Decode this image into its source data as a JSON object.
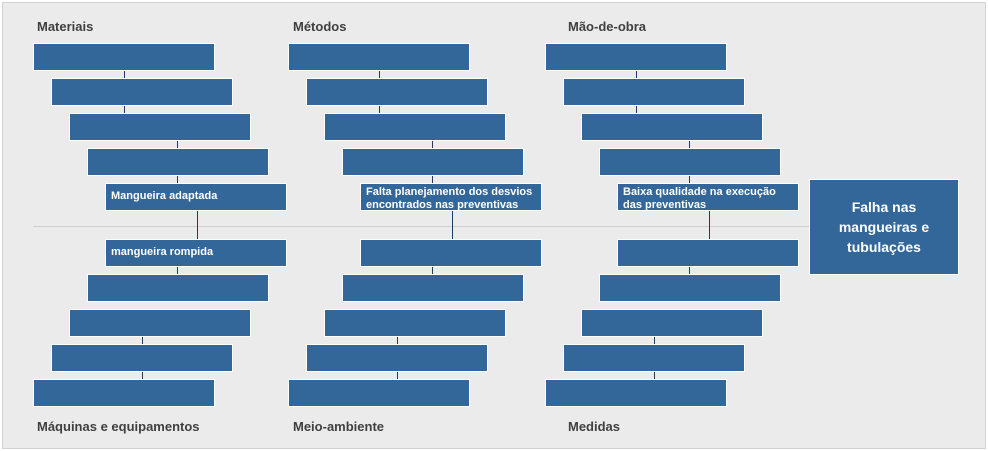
{
  "categories": {
    "materiais": "Materiais",
    "metodos": "Métodos",
    "mao_de_obra": "Mão-de-obra",
    "maquinas": "Máquinas e equipamentos",
    "meio_ambiente": "Meio-ambiente",
    "medidas": "Medidas"
  },
  "causes": {
    "materiais": [
      "",
      "",
      "",
      "",
      "Mangueira adaptada"
    ],
    "metodos": [
      "",
      "",
      "",
      "",
      "Falta planejamento dos desvios encontrados nas preventivas"
    ],
    "mao_de_obra": [
      "",
      "",
      "",
      "",
      "Baixa qualidade na execução das preventivas"
    ],
    "maquinas": [
      "mangueira rompida",
      "",
      "",
      "",
      ""
    ],
    "meio_ambiente": [
      "",
      "",
      "",
      "",
      ""
    ],
    "medidas": [
      "",
      "",
      "",
      "",
      ""
    ]
  },
  "effect": "Falha nas mangueiras e tubulações",
  "colors": {
    "box": "#336699",
    "background": "#ebebeb",
    "label": "#404040"
  }
}
